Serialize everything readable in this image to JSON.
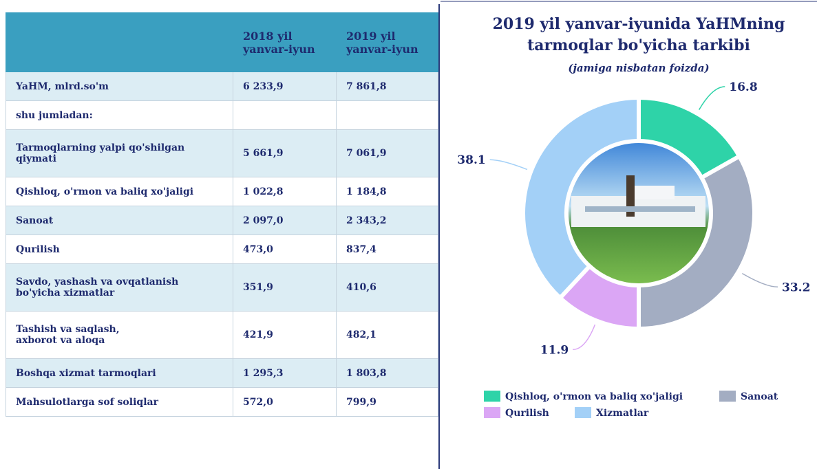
{
  "table": {
    "header": [
      null,
      [
        "2018 yil",
        "yanvar-iyun"
      ],
      [
        "2019 yil",
        "yanvar-iyun"
      ]
    ],
    "rows": [
      [
        [
          "YaHM, mlrd.so'm"
        ],
        "6 233,9",
        "7 861,8"
      ],
      [
        [
          "shu jumladan:"
        ],
        null,
        null
      ],
      [
        [
          "Tarmoqlarning yalpi qo'shilgan",
          "qiymati"
        ],
        "5 661,9",
        "7 061,9"
      ],
      [
        [
          "Qishloq, o'rmon va baliq xo'jaligi"
        ],
        "1 022,8",
        "1 184,8"
      ],
      [
        [
          "Sanoat"
        ],
        "2 097,0",
        "2 343,2"
      ],
      [
        [
          "Qurilish"
        ],
        "473,0",
        "837,4"
      ],
      [
        [
          "Savdo, yashash va ovqatlanish",
          "bo'yicha xizmatlar"
        ],
        "351,9",
        "410,6"
      ],
      [
        [
          "Tashish va saqlash,",
          "axborot va aloqa"
        ],
        "421,9",
        "482,1"
      ],
      [
        [
          "Boshqa xizmat tarmoqlari"
        ],
        "1 295,3",
        "1 803,8"
      ],
      [
        [
          "Mahsulotlarga sof soliqlar"
        ],
        "572,0",
        "799,9"
      ]
    ]
  },
  "chart_data": {
    "type": "donut",
    "title": [
      "2019 yil yanvar-iyunida YaHMning",
      "tarmoqlar bo'yicha tarkibi"
    ],
    "subtitle": "(jamiga nisbatan foizda)",
    "categories": [
      "Qishloq, o'rmon va baliq xo'jaligi",
      "Sanoat",
      "Qurilish",
      "Xizmatlar"
    ],
    "values": [
      16.8,
      33.2,
      11.9,
      38.1
    ],
    "colors": [
      "#2ed3a8",
      "#a3adc2",
      "#dba6f5",
      "#a3d0f7"
    ]
  }
}
